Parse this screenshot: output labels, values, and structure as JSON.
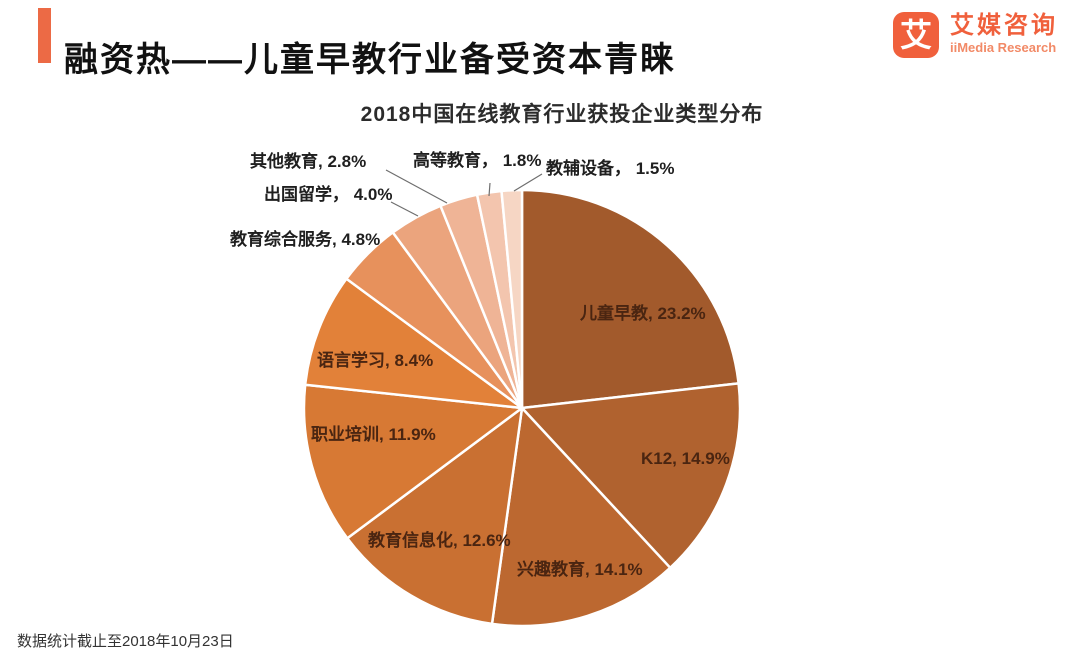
{
  "header": {
    "title": "融资热——儿童早教行业备受资本青睐",
    "accent_color": "#EC6A45"
  },
  "logo": {
    "mark_glyph": "艾",
    "name_cn": "艾媒咨询",
    "name_en": "iiMedia Research",
    "brand_color": "#F0603C",
    "brand_color_light": "#F28A67"
  },
  "footer": {
    "note": "数据统计截止至2018年10月23日"
  },
  "chart_data": {
    "type": "pie",
    "title": "2018中国在线教育行业获投企业类型分布",
    "unit": "percent",
    "start_angle_deg": 0,
    "direction": "clockwise",
    "legend_position": "labels-on-and-around-slices",
    "slices": [
      {
        "label": "儿童早教",
        "value": 23.2,
        "display": "儿童早教, 23.2%",
        "color": "#A25A2C"
      },
      {
        "label": "K12",
        "value": 14.9,
        "display": "K12, 14.9%",
        "color": "#B0622F"
      },
      {
        "label": "兴趣教育",
        "value": 14.1,
        "display": "兴趣教育, 14.1%",
        "color": "#BC6830"
      },
      {
        "label": "教育信息化",
        "value": 12.6,
        "display": "教育信息化, 12.6%",
        "color": "#C97032"
      },
      {
        "label": "职业培训",
        "value": 11.9,
        "display": "职业培训, 11.9%",
        "color": "#D77934"
      },
      {
        "label": "语言学习",
        "value": 8.4,
        "display": "语言学习, 8.4%",
        "color": "#E28139"
      },
      {
        "label": "教育综合服务",
        "value": 4.8,
        "display": "教育综合服务, 4.8%",
        "color": "#E7915C"
      },
      {
        "label": "出国留学",
        "value": 4.0,
        "display": "出国留学， 4.0%",
        "color": "#EBA47D"
      },
      {
        "label": "其他教育",
        "value": 2.8,
        "display": "其他教育, 2.8%",
        "color": "#EFB496"
      },
      {
        "label": "高等教育",
        "value": 1.8,
        "display": "高等教育， 1.8%",
        "color": "#F3C5AE"
      },
      {
        "label": "教辅设备",
        "value": 1.5,
        "display": "教辅设备， 1.5%",
        "color": "#F6D6C4"
      }
    ]
  }
}
